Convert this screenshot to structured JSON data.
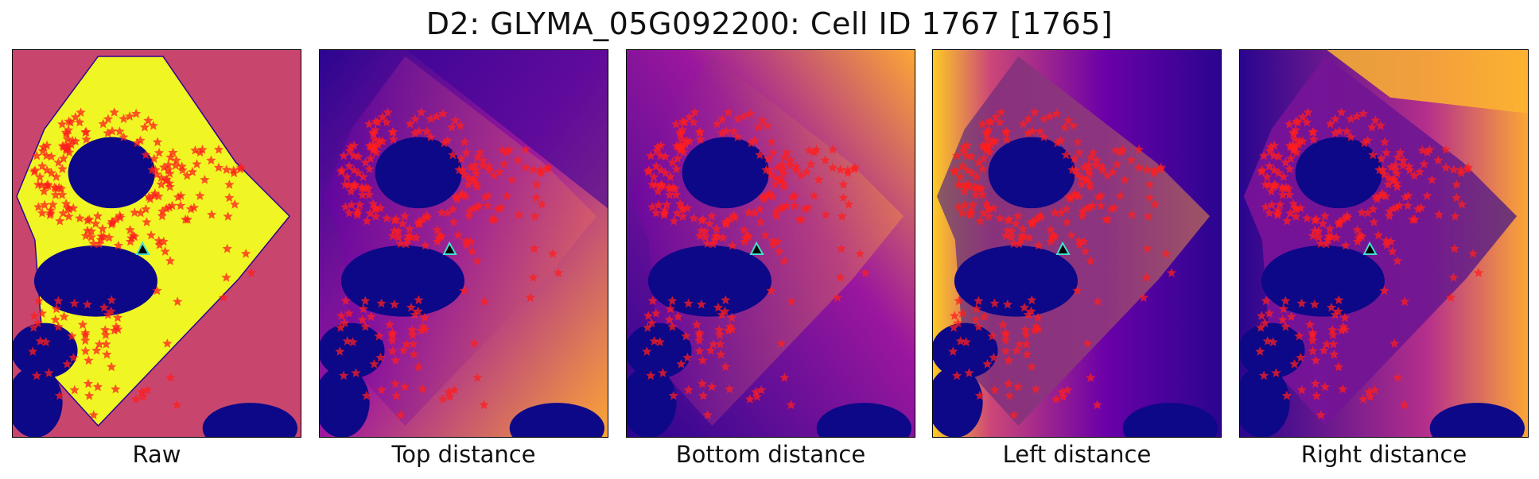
{
  "figure": {
    "title": "D2: GLYMA_05G092200: Cell ID 1767 [1765]",
    "panels": [
      {
        "id": "raw",
        "caption": "Raw"
      },
      {
        "id": "top",
        "caption": "Top distance"
      },
      {
        "id": "bottom",
        "caption": "Bottom distance"
      },
      {
        "id": "left",
        "caption": "Left distance"
      },
      {
        "id": "right",
        "caption": "Right distance"
      }
    ]
  },
  "colors": {
    "background_raw": "#c8466e",
    "cell_fill_raw": "#f0f524",
    "nucleus": "#0d0887",
    "plasma_dark": "#2a058f",
    "plasma_mid": "#9b179e",
    "plasma_light": "#fca636",
    "spot": "#ff1e1e",
    "marker_outline": "#40e0d0",
    "marker": "#000000"
  }
}
